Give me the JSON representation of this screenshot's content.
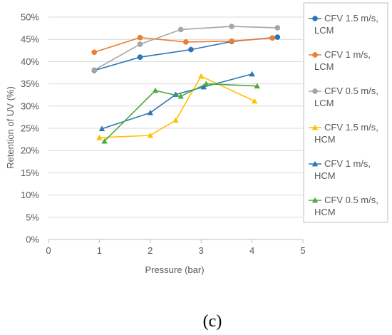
{
  "chart_data": {
    "type": "line",
    "xlabel": "Pressure  (bar)",
    "ylabel": "Retention of UV  (%)",
    "xlim": [
      0,
      5
    ],
    "ylim": [
      0,
      50
    ],
    "x_ticks": [
      "0",
      "1",
      "2",
      "3",
      "4",
      "5"
    ],
    "y_ticks": [
      "0%",
      "5%",
      "10%",
      "15%",
      "20%",
      "25%",
      "30%",
      "35%",
      "40%",
      "45%",
      "50%"
    ],
    "grid": true,
    "legend_position": "right",
    "caption": "(c)",
    "series": [
      {
        "name": "CFV 1.5 m/s, LCM",
        "color": "#2e75b6",
        "marker": "circle",
        "x": [
          0.9,
          1.8,
          2.8,
          3.6,
          4.5
        ],
        "y": [
          38.0,
          41.0,
          42.7,
          44.5,
          45.5
        ]
      },
      {
        "name": "CFV 1 m/s, LCM",
        "color": "#ed7d31",
        "marker": "circle",
        "x": [
          0.9,
          1.8,
          2.7,
          3.6,
          4.4
        ],
        "y": [
          42.1,
          45.4,
          44.4,
          44.6,
          45.3
        ]
      },
      {
        "name": "CFV 0.5 m/s, LCM",
        "color": "#a5a5a5",
        "marker": "circle",
        "x": [
          0.9,
          1.8,
          2.6,
          3.6,
          4.5
        ],
        "y": [
          38.1,
          43.9,
          47.2,
          47.9,
          47.6
        ]
      },
      {
        "name": "CFV 1.5 m/s, HCM",
        "color": "#ffc000",
        "marker": "triangle",
        "x": [
          1.0,
          2.0,
          2.5,
          3.0,
          4.05
        ],
        "y": [
          22.9,
          23.4,
          26.8,
          36.7,
          31.1
        ]
      },
      {
        "name": "CFV 1 m/s, HCM",
        "color": "#2e75b6",
        "marker": "triangle",
        "x": [
          1.05,
          2.0,
          2.5,
          3.05,
          4.0
        ],
        "y": [
          24.9,
          28.5,
          32.6,
          34.3,
          37.2
        ]
      },
      {
        "name": "CFV 0.5 m/s, HCM",
        "color": "#4eaa3c",
        "marker": "triangle",
        "x": [
          1.1,
          2.1,
          2.6,
          3.1,
          4.1
        ],
        "y": [
          22.1,
          33.5,
          32.2,
          35.0,
          34.5
        ]
      }
    ]
  }
}
